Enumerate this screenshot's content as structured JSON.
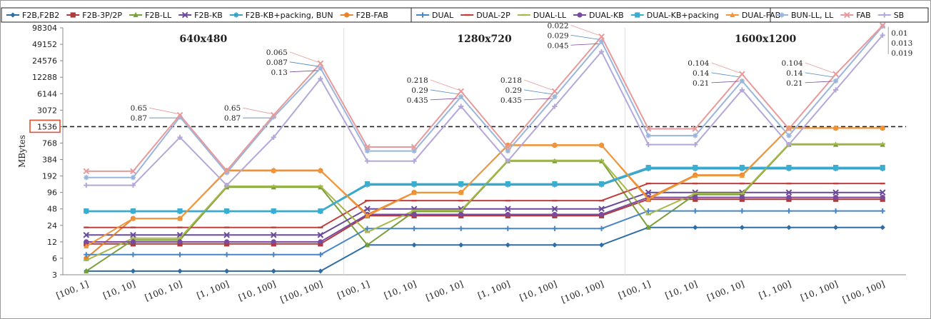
{
  "chart_data": {
    "type": "line",
    "ylabel": "MBytes",
    "y_scale": "log2",
    "ylim": [
      3,
      98304
    ],
    "y_ticks": [
      "3",
      "6",
      "12",
      "24",
      "48",
      "96",
      "192",
      "384",
      "768",
      "1536",
      "3072",
      "6144",
      "12288",
      "24576",
      "49152",
      "98304"
    ],
    "highlighted_tick": "1536",
    "reference_line": 1536,
    "panels": [
      "640x480",
      "1280x720",
      "1600x1200"
    ],
    "categories": [
      "[100, 1]",
      "[10, 10]",
      "[100, 10]",
      "[1, 100]",
      "[10, 100]",
      "[100, 100]",
      "[100, 1]",
      "[10, 10]",
      "[100, 10]",
      "[1, 100]",
      "[10, 100]",
      "[100, 100]",
      "[100, 1]",
      "[10, 10]",
      "[100, 10]",
      "[1, 100]",
      "[10, 100]",
      "[100, 100]"
    ],
    "legend_position": "top",
    "series": [
      {
        "name": "F2B,F2B2",
        "color": "#2e6ea5",
        "marker": "diamond",
        "group": 1,
        "values": [
          3.5,
          3.5,
          3.5,
          3.5,
          3.5,
          3.5,
          10.5,
          10.5,
          10.5,
          10.5,
          10.5,
          10.5,
          22,
          22,
          22,
          22,
          22,
          22
        ]
      },
      {
        "name": "F2B-3P/2P",
        "color": "#b03a3a",
        "marker": "square",
        "group": 1,
        "values": [
          11,
          11,
          11,
          11,
          11,
          11,
          36,
          36,
          36,
          36,
          36,
          36,
          72,
          72,
          72,
          72,
          72,
          72
        ]
      },
      {
        "name": "F2B-LL",
        "color": "#7aa03a",
        "marker": "triangle",
        "group": 1,
        "values": [
          3.5,
          13,
          13,
          120,
          120,
          120,
          10.5,
          43,
          43,
          360,
          360,
          360,
          22,
          88,
          88,
          720,
          720,
          720
        ]
      },
      {
        "name": "F2B-KB",
        "color": "#6a4a9a",
        "marker": "x",
        "group": 1,
        "values": [
          16,
          16,
          16,
          16,
          16,
          16,
          48,
          48,
          48,
          48,
          48,
          48,
          96,
          96,
          96,
          96,
          96,
          96
        ]
      },
      {
        "name": "F2B-KB+packing, BUN",
        "color": "#3aa0c4",
        "marker": "star",
        "group": 1,
        "values": [
          43,
          43,
          43,
          43,
          43,
          43,
          132,
          132,
          132,
          132,
          132,
          132,
          260,
          260,
          260,
          260,
          260,
          260
        ]
      },
      {
        "name": "F2B-FAB",
        "color": "#e8842a",
        "marker": "circle",
        "group": 1,
        "values": [
          6,
          32,
          32,
          240,
          240,
          240,
          38,
          96,
          96,
          700,
          700,
          700,
          76,
          200,
          200,
          1440,
          1440,
          1440
        ]
      },
      {
        "name": "DUAL",
        "color": "#4a86c6",
        "marker": "plus",
        "group": 2,
        "values": [
          7,
          7,
          7,
          7,
          7,
          7,
          21,
          21,
          21,
          21,
          21,
          21,
          44,
          44,
          44,
          44,
          44,
          44
        ]
      },
      {
        "name": "DUAL-2P",
        "color": "#c04040",
        "marker": "dash",
        "group": 2,
        "values": [
          22,
          22,
          22,
          22,
          22,
          22,
          68,
          68,
          68,
          68,
          68,
          68,
          140,
          140,
          140,
          140,
          140,
          140
        ]
      },
      {
        "name": "DUAL-LL",
        "color": "#a8b84a",
        "marker": "dash",
        "group": 2,
        "values": [
          5.5,
          14,
          14,
          125,
          125,
          125,
          18,
          45,
          45,
          370,
          370,
          370,
          38,
          92,
          92,
          740,
          740,
          740
        ]
      },
      {
        "name": "DUAL-KB",
        "color": "#7a4a9e",
        "marker": "circle",
        "group": 2,
        "values": [
          12,
          12,
          12,
          12,
          12,
          12,
          38,
          38,
          38,
          38,
          38,
          38,
          78,
          78,
          78,
          78,
          78,
          78
        ]
      },
      {
        "name": "DUAL-KB+packing",
        "color": "#3aaed0",
        "marker": "square",
        "group": 2,
        "values": [
          44,
          44,
          44,
          44,
          44,
          44,
          138,
          138,
          138,
          138,
          138,
          138,
          275,
          275,
          275,
          275,
          275,
          275
        ]
      },
      {
        "name": "DUAL-FAB",
        "color": "#f0963a",
        "marker": "triangle",
        "group": 2,
        "values": [
          10,
          32,
          32,
          245,
          245,
          245,
          36,
          95,
          95,
          710,
          710,
          710,
          72,
          195,
          195,
          1450,
          1450,
          1450
        ]
      },
      {
        "name": "BUN-LL, LL",
        "color": "#9ab6dc",
        "marker": "star",
        "group": 3,
        "values": [
          180,
          180,
          2300,
          220,
          2300,
          18000,
          550,
          550,
          5400,
          550,
          5400,
          55000,
          1050,
          1050,
          10500,
          1050,
          10500,
          105000
        ]
      },
      {
        "name": "FAB",
        "color": "#e89a9a",
        "marker": "x",
        "group": 3,
        "values": [
          235,
          235,
          2500,
          240,
          2500,
          22000,
          650,
          650,
          6800,
          650,
          6800,
          68000,
          1400,
          1400,
          14000,
          1400,
          14000,
          140000
        ]
      },
      {
        "name": "SB",
        "color": "#b4a8d8",
        "marker": "plus",
        "group": 3,
        "values": [
          130,
          130,
          980,
          130,
          980,
          11500,
          360,
          360,
          3600,
          360,
          3600,
          36000,
          720,
          720,
          7200,
          720,
          7200,
          72000
        ]
      }
    ],
    "annotations": [
      {
        "cat": 2,
        "lines": [
          "0.65",
          "0.87"
        ]
      },
      {
        "cat": 4,
        "lines": [
          "0.65",
          "0.87"
        ]
      },
      {
        "cat": 5,
        "lines": [
          "0.065",
          "0.087",
          "0.13"
        ]
      },
      {
        "cat": 8,
        "lines": [
          "0.218",
          "0.29",
          "0.435"
        ]
      },
      {
        "cat": 10,
        "lines": [
          "0.218",
          "0.29",
          "0.435"
        ]
      },
      {
        "cat": 11,
        "lines": [
          "0.022",
          "0.029",
          "0.045"
        ]
      },
      {
        "cat": 14,
        "lines": [
          "0.104",
          "0.14",
          "0.21"
        ]
      },
      {
        "cat": 16,
        "lines": [
          "0.104",
          "0.14",
          "0.21"
        ]
      },
      {
        "cat": 17,
        "lines": [
          "0.01",
          "0.013",
          "0.019"
        ],
        "side": "right"
      }
    ]
  }
}
